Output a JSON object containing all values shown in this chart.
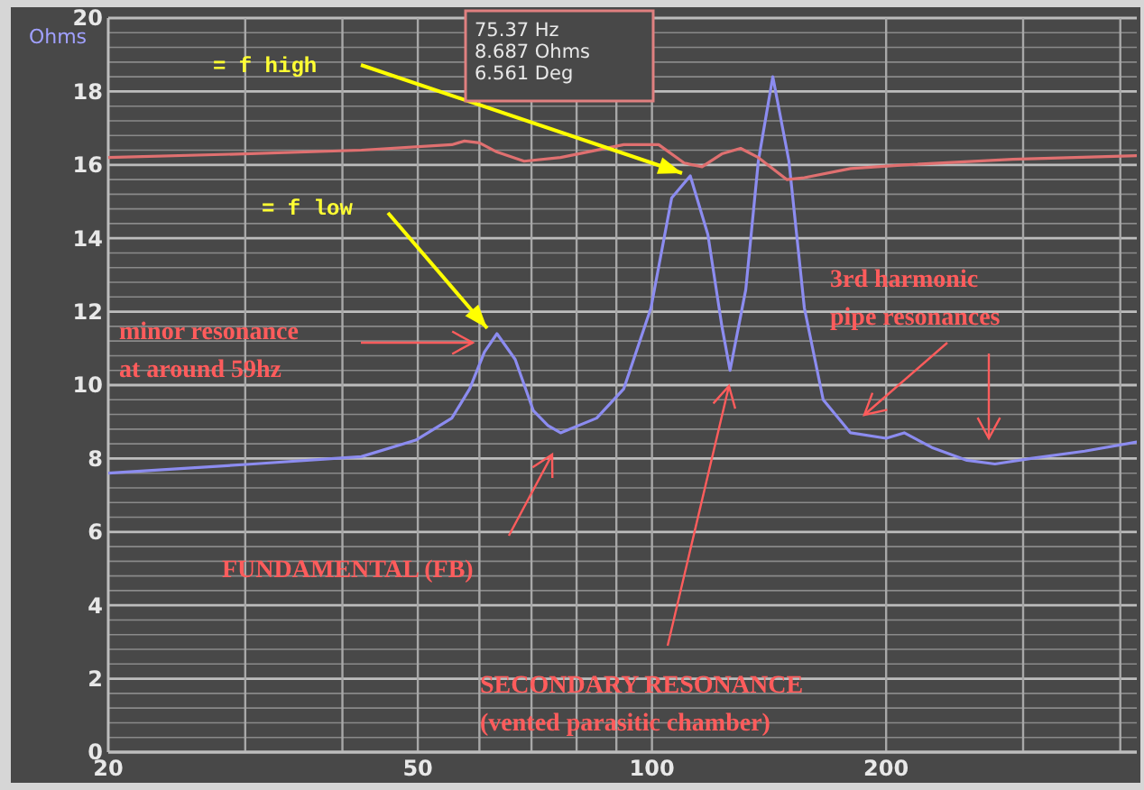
{
  "chart_data": {
    "type": "line",
    "ylabel": "Ohms",
    "log": "x",
    "xlim": [
      20,
      420
    ],
    "ylim": [
      0,
      20
    ],
    "xticks": [
      20,
      {
        "value": 30,
        "label": null
      },
      {
        "value": 40,
        "label": null
      },
      50,
      {
        "value": 60,
        "label": null
      },
      {
        "value": 70,
        "label": null
      },
      {
        "value": 80,
        "label": null
      },
      {
        "value": 90,
        "label": null
      },
      100,
      200,
      {
        "value": 300,
        "label": null
      },
      {
        "value": 400,
        "label": null
      }
    ],
    "yticks": [
      0,
      {
        "value": 0.4,
        "label": null
      },
      {
        "value": 0.8,
        "label": null
      },
      {
        "value": 1.2,
        "label": null
      },
      {
        "value": 1.6,
        "label": null
      },
      2,
      {
        "value": 2.4,
        "label": null
      },
      {
        "value": 2.8,
        "label": null
      },
      {
        "value": 3.2,
        "label": null
      },
      {
        "value": 3.6,
        "label": null
      },
      4,
      {
        "value": 4.4,
        "label": null
      },
      {
        "value": 4.8,
        "label": null
      },
      {
        "value": 5.2,
        "label": null
      },
      {
        "value": 5.6,
        "label": null
      },
      6,
      {
        "value": 6.4,
        "label": null
      },
      {
        "value": 6.8,
        "label": null
      },
      {
        "value": 7.2,
        "label": null
      },
      {
        "value": 7.6,
        "label": null
      },
      8,
      {
        "value": 8.4,
        "label": null
      },
      {
        "value": 8.8,
        "label": null
      },
      {
        "value": 9.2,
        "label": null
      },
      {
        "value": 9.6,
        "label": null
      },
      10,
      {
        "value": 10.4,
        "label": null
      },
      {
        "value": 10.8,
        "label": null
      },
      {
        "value": 11.2,
        "label": null
      },
      {
        "value": 11.6,
        "label": null
      },
      12,
      {
        "value": 12.4,
        "label": null
      },
      {
        "value": 12.8,
        "label": null
      },
      {
        "value": 13.2,
        "label": null
      },
      {
        "value": 13.6,
        "label": null
      },
      14,
      {
        "value": 14.4,
        "label": null
      },
      {
        "value": 14.8,
        "label": null
      },
      {
        "value": 15.2,
        "label": null
      },
      {
        "value": 15.6,
        "label": null
      },
      16,
      {
        "value": 16.4,
        "label": null
      },
      {
        "value": 16.8,
        "label": null
      },
      {
        "value": 17.2,
        "label": null
      },
      {
        "value": 17.6,
        "label": null
      },
      18,
      {
        "value": 18.4,
        "label": null
      },
      {
        "value": 18.8,
        "label": null
      },
      {
        "value": 19.2,
        "label": null
      },
      {
        "value": 19.6,
        "label": null
      },
      20
    ],
    "grid": true,
    "line_style": "solid",
    "series": [
      {
        "color": "#8c8cf0",
        "x": [
          20,
          30.7,
          42.3,
          49.7,
          55.3,
          58.3,
          60.9,
          63.2,
          66.7,
          70.4,
          73.5,
          76.3,
          84.9,
          92,
          99.7,
          106,
          112,
          118,
          123,
          126,
          132,
          137,
          143,
          150,
          157,
          166,
          180,
          200,
          211,
          229,
          254,
          276,
          307,
          360,
          420
        ],
        "values": [
          7.6,
          7.85,
          8.05,
          8.5,
          9.1,
          9.9,
          10.9,
          11.4,
          10.7,
          9.3,
          8.9,
          8.7,
          9.1,
          9.9,
          12.1,
          15.1,
          15.7,
          14.1,
          11.6,
          10.4,
          12.6,
          16.1,
          18.4,
          16.1,
          12.1,
          9.6,
          8.7,
          8.55,
          8.7,
          8.3,
          7.95,
          7.85,
          8.0,
          8.2,
          8.45
        ]
      },
      {
        "color": "#e07070",
        "x": [
          20,
          29.9,
          42.3,
          55.3,
          57.4,
          60,
          63.2,
          68.5,
          76.3,
          92,
          102,
          110,
          116,
          123,
          130,
          137,
          149,
          157,
          180,
          211,
          291,
          420
        ],
        "values": [
          16.2,
          16.3,
          16.4,
          16.55,
          16.65,
          16.6,
          16.35,
          16.1,
          16.2,
          16.55,
          16.55,
          16.05,
          15.95,
          16.3,
          16.45,
          16.2,
          15.6,
          15.65,
          15.9,
          16.0,
          16.15,
          16.25
        ]
      }
    ],
    "annotations": [
      "= f high",
      "= f low",
      "minor resonance\nat around 59hz",
      "FUNDAMENTAL (FB)",
      "SECONDARY RESONANCE\n(vented parasitic chamber)",
      "3rd harmonic\npipe resonances",
      "75.37 Hz\n8.687 Ohms\n6.561 Deg"
    ]
  }
}
